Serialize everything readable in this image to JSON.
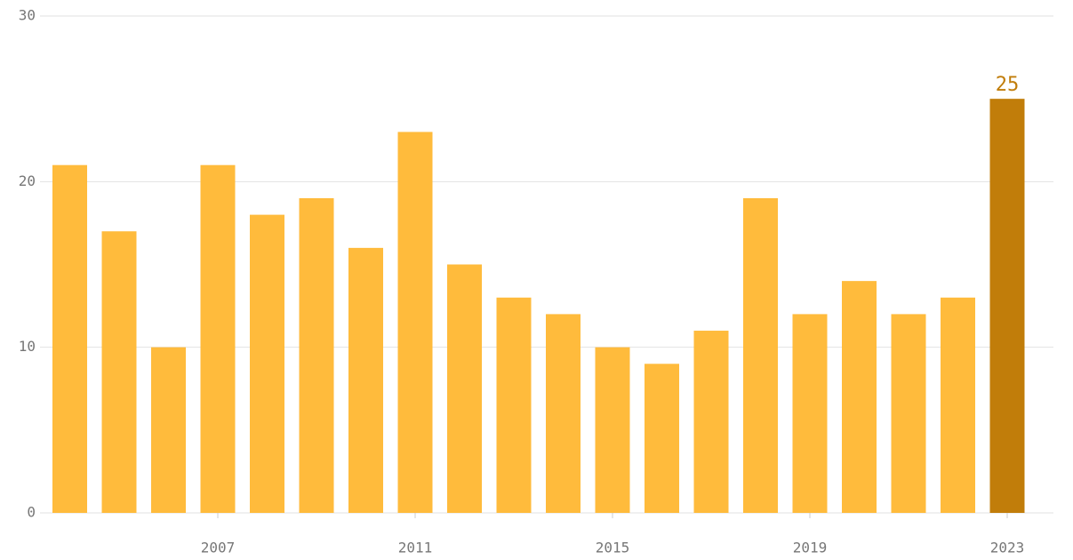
{
  "chart_data": {
    "type": "bar",
    "categories": [
      null,
      null,
      null,
      "2007",
      null,
      null,
      null,
      "2011",
      null,
      null,
      null,
      "2015",
      null,
      null,
      null,
      "2019",
      null,
      null,
      null,
      "2023"
    ],
    "values": [
      21,
      17,
      10,
      21,
      18,
      19,
      16,
      23,
      15,
      13,
      12,
      10,
      9,
      11,
      19,
      12,
      14,
      12,
      13,
      25
    ],
    "colors": [
      "#ffbb3c",
      "#ffbb3c",
      "#ffbb3c",
      "#ffbb3c",
      "#ffbb3c",
      "#ffbb3c",
      "#ffbb3c",
      "#ffbb3c",
      "#ffbb3c",
      "#ffbb3c",
      "#ffbb3c",
      "#ffbb3c",
      "#ffbb3c",
      "#ffbb3c",
      "#ffbb3c",
      "#ffbb3c",
      "#ffbb3c",
      "#ffbb3c",
      "#ffbb3c",
      "#c17d0a"
    ],
    "show_value_labels": [
      false,
      false,
      false,
      false,
      false,
      false,
      false,
      false,
      false,
      false,
      false,
      false,
      false,
      false,
      false,
      false,
      false,
      false,
      false,
      true
    ],
    "ylim": [
      0,
      30
    ],
    "yticks": [
      0,
      10,
      20,
      30
    ],
    "grid": true
  }
}
